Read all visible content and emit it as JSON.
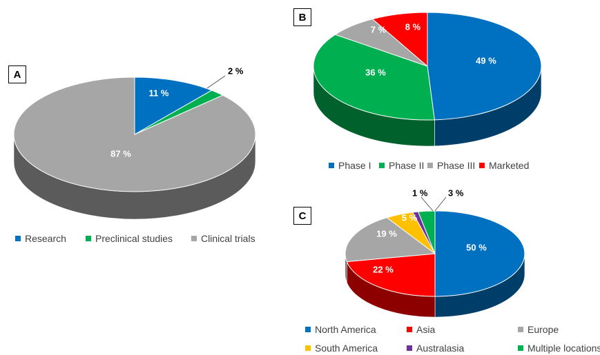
{
  "chart_data": [
    {
      "panel": "A",
      "type": "pie",
      "title": "",
      "categories": [
        "Research",
        "Preclinical studies",
        "Clinical trials"
      ],
      "values": [
        11,
        2,
        87
      ],
      "labels": [
        "11 %",
        "2 %",
        "87 %"
      ],
      "colors": [
        "#0070C0",
        "#00B050",
        "#A6A6A6"
      ],
      "legend": "bottom",
      "three_d": true
    },
    {
      "panel": "B",
      "type": "pie",
      "title": "",
      "categories": [
        "Phase I",
        "Phase II",
        "Phase III",
        "Marketed"
      ],
      "values": [
        49,
        36,
        7,
        8
      ],
      "labels": [
        "49 %",
        "36 %",
        "7 %",
        "8 %"
      ],
      "colors": [
        "#0070C0",
        "#00B050",
        "#A6A6A6",
        "#FF0000"
      ],
      "legend": "bottom",
      "three_d": true
    },
    {
      "panel": "C",
      "type": "pie",
      "title": "",
      "categories": [
        "North America",
        "Asia",
        "Europe",
        "South America",
        "Australasia",
        "Multiple locations"
      ],
      "values": [
        50,
        22,
        19,
        5,
        1,
        3
      ],
      "labels": [
        "50 %",
        "22 %",
        "19 %",
        "5 %",
        "1 %",
        "3 %"
      ],
      "colors": [
        "#0070C0",
        "#FF0000",
        "#A6A6A6",
        "#FFC000",
        "#7030A0",
        "#00B050"
      ],
      "legend": "bottom",
      "three_d": true
    }
  ]
}
